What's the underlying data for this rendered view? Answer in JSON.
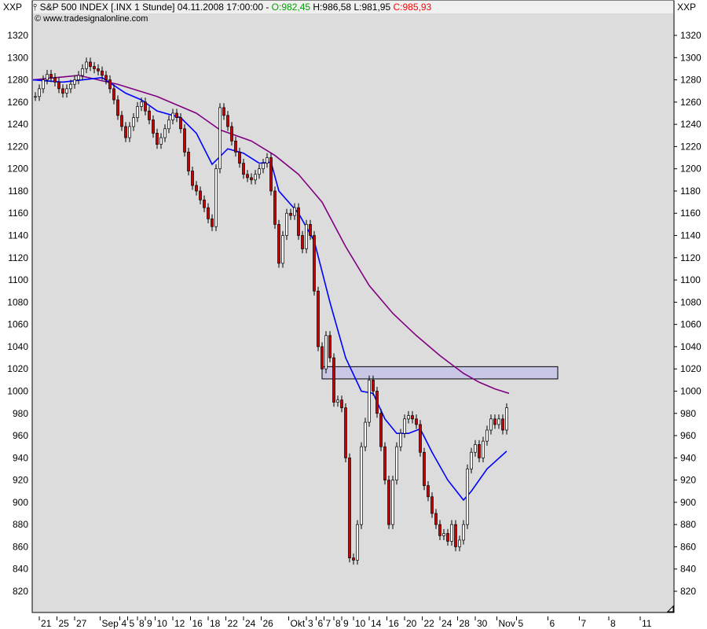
{
  "corner_left": "XXP",
  "corner_right": "XXP",
  "header": {
    "symbol": "S&P 500 INDEX [.INX  1 Stunde] 04.11.2008 17:00:00 -",
    "open": "O:982,45",
    "high": "H:986,58",
    "low": "L:981,95",
    "close": "C:985,93",
    "website": "www.tradesignalonline.com"
  },
  "colors": {
    "background": "#dcdcdc",
    "up_candle": "#ffffff",
    "down_candle": "#cc0000",
    "ma_short": "#0000ff",
    "ma_long": "#800080",
    "zone": "#c8c8e6",
    "open_text": "#00a000",
    "close_text": "#ff0000"
  },
  "chart_data": {
    "type": "candlestick",
    "ylim": [
      810,
      1330
    ],
    "yticks": [
      820,
      840,
      860,
      880,
      900,
      920,
      940,
      960,
      980,
      1000,
      1020,
      1040,
      1060,
      1080,
      1100,
      1120,
      1140,
      1160,
      1180,
      1200,
      1220,
      1240,
      1260,
      1280,
      1300,
      1320
    ],
    "xtick_labels": [
      "21",
      "25",
      "27",
      "Sep",
      "4",
      "5",
      "8",
      "9",
      "10",
      "12",
      "16",
      "18",
      "22",
      "24",
      "26",
      "Okt",
      "3",
      "6",
      "7",
      "8",
      "9",
      "10",
      "14",
      "16",
      "20",
      "22",
      "24",
      "28",
      "30",
      "Nov",
      "5",
      "6",
      "7",
      "8",
      "11"
    ],
    "xtick_bar_index": [
      1,
      5.5,
      10,
      16.5,
      21.5,
      23.5,
      26,
      28,
      30.5,
      35,
      39.5,
      44,
      48.5,
      53,
      57.5,
      64.5,
      69,
      71.5,
      73.5,
      76,
      78,
      81,
      85,
      89.5,
      94,
      98.5,
      103,
      107.5,
      112,
      117.5,
      122.5,
      130.5,
      138.5,
      146,
      154
    ],
    "closes": [
      1265,
      1272,
      1280,
      1285,
      1282,
      1278,
      1272,
      1268,
      1272,
      1276,
      1280,
      1284,
      1290,
      1296,
      1292,
      1290,
      1288,
      1284,
      1280,
      1272,
      1262,
      1248,
      1238,
      1228,
      1238,
      1246,
      1256,
      1260,
      1252,
      1244,
      1232,
      1222,
      1228,
      1236,
      1244,
      1250,
      1246,
      1236,
      1215,
      1198,
      1185,
      1180,
      1172,
      1165,
      1155,
      1148,
      1200,
      1255,
      1248,
      1238,
      1225,
      1215,
      1205,
      1195,
      1192,
      1190,
      1195,
      1200,
      1205,
      1210,
      1180,
      1150,
      1115,
      1140,
      1160,
      1158,
      1165,
      1140,
      1128,
      1150,
      1140,
      1090,
      1040,
      1020,
      1050,
      1030,
      990,
      992,
      985,
      940,
      850,
      848,
      880,
      950,
      972,
      1010,
      1000,
      980,
      950,
      920,
      880,
      920,
      950,
      962,
      975,
      978,
      975,
      970,
      945,
      915,
      905,
      890,
      880,
      870,
      872,
      865,
      880,
      860,
      866,
      880,
      930,
      945,
      952,
      940,
      955,
      965,
      975,
      970,
      975,
      965,
      985
    ],
    "ma_short": [
      [
        -0.6,
        1280
      ],
      [
        7,
        1278
      ],
      [
        17,
        1282
      ],
      [
        23,
        1268
      ],
      [
        27,
        1262
      ],
      [
        31,
        1252
      ],
      [
        37,
        1246
      ],
      [
        41,
        1232
      ],
      [
        45,
        1204
      ],
      [
        49,
        1218
      ],
      [
        53,
        1214
      ],
      [
        57,
        1205
      ],
      [
        60,
        1206
      ],
      [
        62,
        1180
      ],
      [
        67,
        1160
      ],
      [
        71,
        1135
      ],
      [
        75,
        1080
      ],
      [
        79,
        1030
      ],
      [
        83,
        1000
      ],
      [
        86,
        998
      ],
      [
        89,
        975
      ],
      [
        92,
        962
      ],
      [
        95,
        962
      ],
      [
        98,
        966
      ],
      [
        101,
        945
      ],
      [
        105,
        920
      ],
      [
        109,
        902
      ],
      [
        111,
        910
      ],
      [
        115,
        930
      ],
      [
        120,
        946
      ]
    ],
    "ma_long": [
      [
        -0.6,
        1280
      ],
      [
        11,
        1284
      ],
      [
        21,
        1276
      ],
      [
        31,
        1265
      ],
      [
        41,
        1250
      ],
      [
        47,
        1235
      ],
      [
        55,
        1225
      ],
      [
        61,
        1212
      ],
      [
        67,
        1195
      ],
      [
        73,
        1170
      ],
      [
        79,
        1130
      ],
      [
        85,
        1095
      ],
      [
        91,
        1070
      ],
      [
        97,
        1050
      ],
      [
        103,
        1032
      ],
      [
        109,
        1016
      ],
      [
        113,
        1008
      ],
      [
        117,
        1002
      ],
      [
        120.6,
        998
      ]
    ],
    "zone": {
      "low": 1011,
      "high": 1022,
      "from_bar": 73,
      "to_bar": 133
    }
  }
}
